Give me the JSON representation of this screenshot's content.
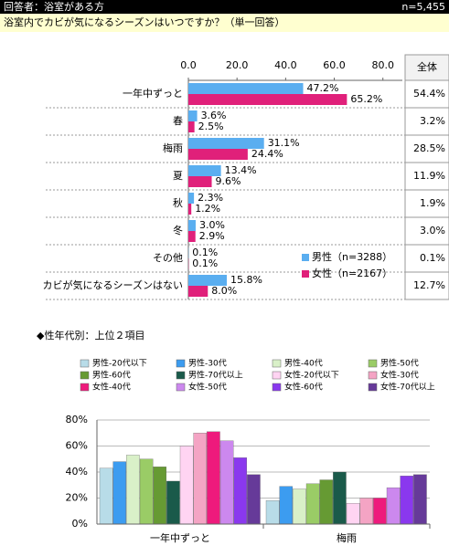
{
  "header": {
    "respondents": "回答者：浴室がある方",
    "n": "n=5,455"
  },
  "question": "浴室内でカビが気になるシーズンはいつですか？（単一回答）",
  "section_title": "◆性年代別：上位２項目",
  "chart_data": [
    {
      "type": "bar",
      "orientation": "horizontal",
      "categories": [
        "一年中ずっと",
        "春",
        "梅雨",
        "夏",
        "秋",
        "冬",
        "その他",
        "カビが気になるシーズンはない"
      ],
      "series": [
        {
          "name": "男性（n=3288）",
          "color": "#5aaef0",
          "values": [
            47.2,
            3.6,
            31.1,
            13.4,
            2.3,
            3.0,
            0.1,
            15.8
          ],
          "value_labels": [
            "47.2%",
            "3.6%",
            "31.1%",
            "13.4%",
            "2.3%",
            "3.0%",
            "0.1%",
            "15.8%"
          ]
        },
        {
          "name": "女性（n=2167）",
          "color": "#e0207a",
          "values": [
            65.2,
            2.5,
            24.4,
            9.6,
            1.2,
            2.9,
            0.1,
            8.0
          ],
          "value_labels": [
            "65.2%",
            "2.5%",
            "24.4%",
            "9.6%",
            "1.2%",
            "2.9%",
            "0.1%",
            "8.0%"
          ]
        }
      ],
      "xlim": [
        0,
        88
      ],
      "xticks": [
        {
          "value": 0,
          "label": "0.0"
        },
        {
          "value": 20,
          "label": "20.0"
        },
        {
          "value": 40,
          "label": "40.0"
        },
        {
          "value": 60,
          "label": "60.0"
        },
        {
          "value": 80,
          "label": "80.0"
        }
      ],
      "total": {
        "label": "全体",
        "values": [
          54.4,
          3.2,
          28.5,
          11.9,
          1.9,
          3.0,
          0.1,
          12.7
        ],
        "value_labels": [
          "54.4%",
          "3.2%",
          "28.5%",
          "11.9%",
          "1.9%",
          "3.0%",
          "0.1%",
          "12.7%"
        ]
      },
      "legend": "lower-right"
    },
    {
      "type": "bar",
      "orientation": "vertical",
      "categories": [
        "一年中ずっと",
        "梅雨"
      ],
      "series": [
        {
          "name": "男性-20代以下",
          "color": "#b8dce8",
          "values": [
            43,
            18
          ]
        },
        {
          "name": "男性-30代",
          "color": "#3c9cf0",
          "values": [
            48,
            29
          ]
        },
        {
          "name": "男性-40代",
          "color": "#d9f0c8",
          "values": [
            53,
            27
          ]
        },
        {
          "name": "男性-50代",
          "color": "#9acc66",
          "values": [
            50,
            31
          ]
        },
        {
          "name": "男性-60代",
          "color": "#669a33",
          "values": [
            44,
            34
          ]
        },
        {
          "name": "男性-70代以上",
          "color": "#1a5a4a",
          "values": [
            33,
            40
          ]
        },
        {
          "name": "女性-20代以下",
          "color": "#ffd4f2",
          "values": [
            60,
            16
          ]
        },
        {
          "name": "女性-30代",
          "color": "#f4a4c4",
          "values": [
            70,
            20
          ]
        },
        {
          "name": "女性-40代",
          "color": "#ee1a7c",
          "values": [
            71,
            20
          ]
        },
        {
          "name": "女性-50代",
          "color": "#cc88ee",
          "values": [
            64,
            28
          ]
        },
        {
          "name": "女性-60代",
          "color": "#8a38ee",
          "values": [
            51,
            37
          ]
        },
        {
          "name": "女性-70代以上",
          "color": "#663a99",
          "values": [
            38,
            38
          ]
        }
      ],
      "ylim": [
        0,
        80
      ],
      "yticks": [
        {
          "value": 0,
          "label": "0%"
        },
        {
          "value": 20,
          "label": "20%"
        },
        {
          "value": 40,
          "label": "40%"
        },
        {
          "value": 60,
          "label": "60%"
        },
        {
          "value": 80,
          "label": "80%"
        }
      ],
      "grid": true,
      "legend": "top"
    }
  ]
}
